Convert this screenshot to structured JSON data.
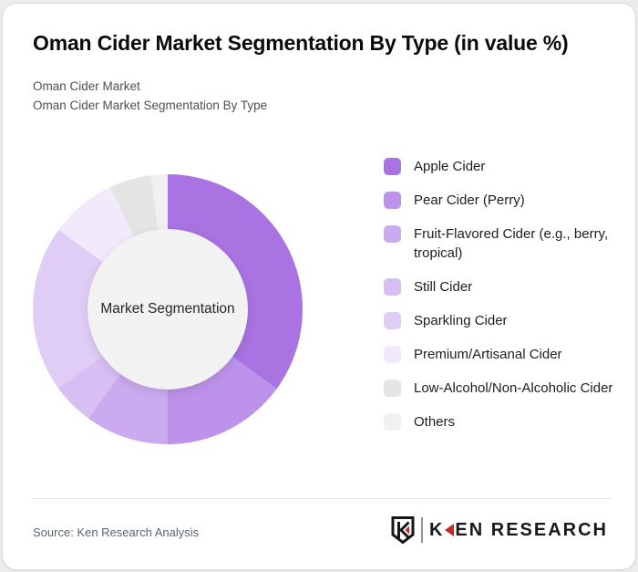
{
  "header": {
    "title": "Oman Cider Market Segmentation By Type (in value %)",
    "subtitle_line1": "Oman Cider Market",
    "subtitle_line2": "Oman Cider Market Segmentation By Type"
  },
  "chart_data": {
    "type": "pie",
    "style": "donut",
    "title": "Oman Cider Market Segmentation By Type (in value %)",
    "center_label": "Market Segmentation",
    "start_angle_deg": 0,
    "direction": "clockwise",
    "legend_position": "right",
    "values_shown_on_chart": false,
    "labels": [
      "Apple Cider",
      "Pear Cider (Perry)",
      "Fruit-Flavored Cider (e.g., berry, tropical)",
      "Still Cider",
      "Sparkling Cider",
      "Premium/Artisanal Cider",
      "Low-Alcohol/Non-Alcoholic Cider",
      "Others"
    ],
    "values_pct": [
      35,
      15,
      10,
      5,
      20,
      8,
      5,
      2
    ],
    "colors": [
      "#a973e2",
      "#bd92ea",
      "#cbaaef",
      "#d7bff3",
      "#e0cdf5",
      "#f2eafb",
      "#e5e4e5",
      "#f1f0f1"
    ],
    "center_bg": "#f2f2f2"
  },
  "footer": {
    "source": "Source: Ken Research Analysis",
    "logo": {
      "first_letter": "K",
      "rest_text": "EN RESEARCH",
      "accent_color": "#c5292e"
    }
  }
}
